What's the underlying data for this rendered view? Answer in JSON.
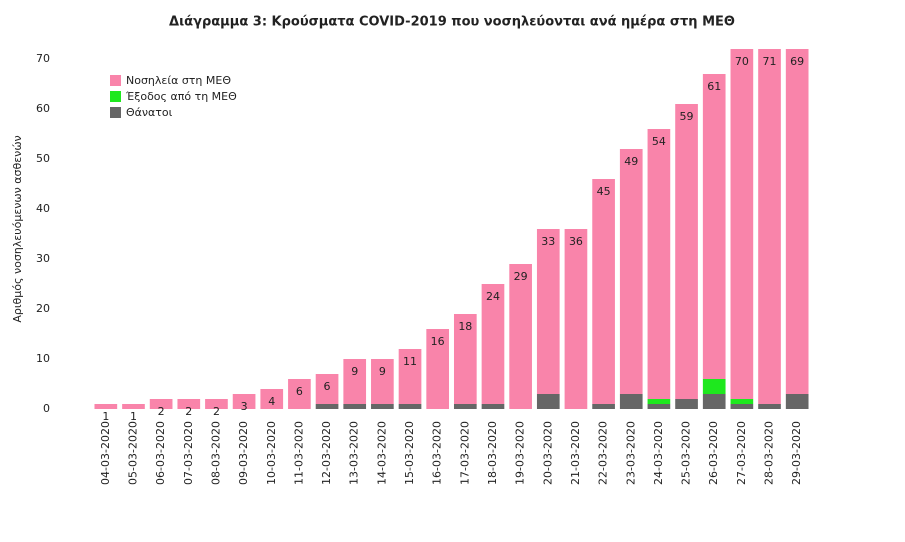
{
  "chart_data": {
    "type": "stacked_bar",
    "title": "Διάγραμμα 3: Κρούσματα COVID-2019 που νοσηλεύονται ανά ημέρα στη ΜΕΘ",
    "y_label": "Αριθμός νοσηλευόμενων ασθενών",
    "categories": [
      "04-03-2020",
      "05-03-2020",
      "06-03-2020",
      "07-03-2020",
      "08-03-2020",
      "09-03-2020",
      "10-03-2020",
      "11-03-2020",
      "12-03-2020",
      "13-03-2020",
      "14-03-2020",
      "15-03-2020",
      "16-03-2020",
      "17-03-2020",
      "18-03-2020",
      "19-03-2020",
      "20-03-2020",
      "21-03-2020",
      "22-03-2020",
      "23-03-2020",
      "24-03-2020",
      "25-03-2020",
      "26-03-2020",
      "27-03-2020",
      "28-03-2020",
      "29-03-2020"
    ],
    "series": [
      {
        "name": "Θάνατοι",
        "color": "#666666",
        "values": [
          0,
          0,
          0,
          0,
          0,
          0,
          0,
          0,
          1,
          1,
          1,
          1,
          0,
          1,
          1,
          0,
          3,
          0,
          1,
          3,
          1,
          2,
          3,
          1,
          1,
          3
        ]
      },
      {
        "name": "Έξοδος από τη ΜΕΘ",
        "color": "#1ee81e",
        "values": [
          0,
          0,
          0,
          0,
          0,
          0,
          0,
          0,
          0,
          0,
          0,
          0,
          0,
          0,
          0,
          0,
          0,
          0,
          0,
          0,
          1,
          0,
          3,
          1,
          0,
          0
        ]
      },
      {
        "name": "Νοσηλεία στη ΜΕΘ",
        "color": "#f984aa",
        "values": [
          1,
          1,
          2,
          2,
          2,
          3,
          4,
          6,
          6,
          9,
          9,
          11,
          16,
          18,
          24,
          29,
          33,
          36,
          45,
          49,
          54,
          59,
          61,
          70,
          71,
          69
        ]
      }
    ],
    "legend_order": [
      2,
      1,
      0
    ],
    "ylim": [
      0,
      72
    ],
    "yticks": [
      0,
      10,
      20,
      30,
      40,
      50,
      60,
      70
    ],
    "grid": false
  }
}
